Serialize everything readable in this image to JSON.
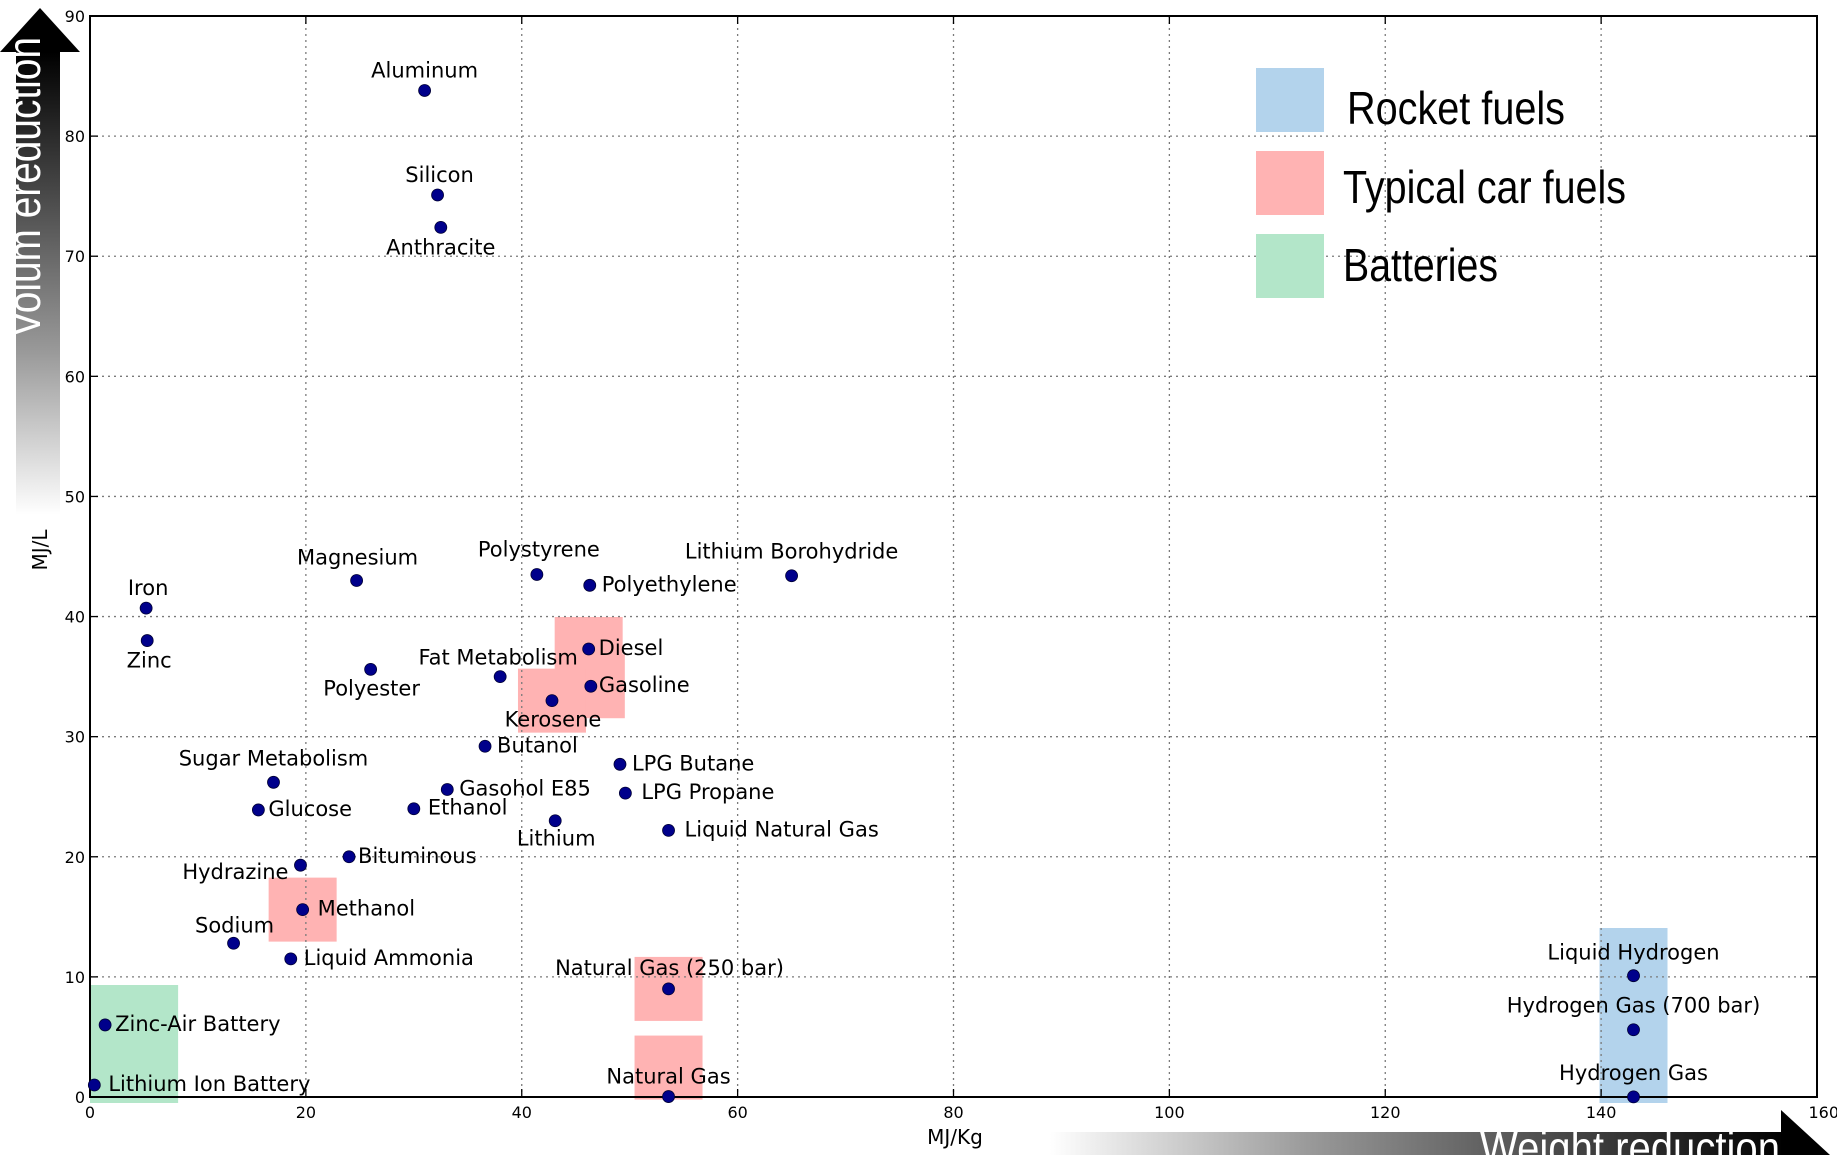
{
  "chart_data": {
    "type": "scatter",
    "xlabel": "MJ/Kg",
    "ylabel": "MJ/L",
    "xlim": [
      0,
      160
    ],
    "ylim": [
      0,
      90
    ],
    "xticks": [
      0,
      20,
      40,
      60,
      80,
      100,
      120,
      140,
      160
    ],
    "yticks": [
      0,
      10,
      20,
      30,
      40,
      50,
      60,
      70,
      80,
      90
    ],
    "grid": true,
    "marker_color": "#00008b",
    "points": [
      {
        "label": "Aluminum",
        "x": 31.0,
        "y": 83.8
      },
      {
        "label": "Silicon",
        "x": 32.2,
        "y": 75.1
      },
      {
        "label": "Anthracite",
        "x": 32.5,
        "y": 72.4
      },
      {
        "label": "Magnesium",
        "x": 24.7,
        "y": 43.0
      },
      {
        "label": "Polystyrene",
        "x": 41.4,
        "y": 43.5
      },
      {
        "label": "Polyethylene",
        "x": 46.3,
        "y": 42.6
      },
      {
        "label": "Lithium Borohydride",
        "x": 65.0,
        "y": 43.4
      },
      {
        "label": "Iron",
        "x": 5.2,
        "y": 40.7
      },
      {
        "label": "Zinc",
        "x": 5.3,
        "y": 38.0
      },
      {
        "label": "Polyester",
        "x": 26.0,
        "y": 35.6
      },
      {
        "label": "Fat Metabolism",
        "x": 38.0,
        "y": 35.0
      },
      {
        "label": "Diesel",
        "x": 46.2,
        "y": 37.3
      },
      {
        "label": "Gasoline",
        "x": 46.4,
        "y": 34.2
      },
      {
        "label": "Kerosene",
        "x": 42.8,
        "y": 33.0
      },
      {
        "label": "Butanol",
        "x": 36.6,
        "y": 29.2
      },
      {
        "label": "Sugar Metabolism",
        "x": 17.0,
        "y": 26.2
      },
      {
        "label": "LPG Butane",
        "x": 49.1,
        "y": 27.7
      },
      {
        "label": "LPG Propane",
        "x": 49.6,
        "y": 25.3
      },
      {
        "label": "Gasohol E85",
        "x": 33.1,
        "y": 25.6
      },
      {
        "label": "Glucose",
        "x": 15.6,
        "y": 23.9
      },
      {
        "label": "Ethanol",
        "x": 30.0,
        "y": 24.0
      },
      {
        "label": "Lithium",
        "x": 43.1,
        "y": 23.0
      },
      {
        "label": "Liquid Natural Gas",
        "x": 53.6,
        "y": 22.2
      },
      {
        "label": "Bituminous",
        "x": 24.0,
        "y": 20.0
      },
      {
        "label": "Hydrazine",
        "x": 19.5,
        "y": 19.3
      },
      {
        "label": "Methanol",
        "x": 19.7,
        "y": 15.6
      },
      {
        "label": "Sodium",
        "x": 13.3,
        "y": 12.8
      },
      {
        "label": "Liquid Ammonia",
        "x": 18.6,
        "y": 11.5
      },
      {
        "label": "Natural Gas (250 bar)",
        "x": 53.6,
        "y": 9.0
      },
      {
        "label": "Zinc-Air Battery",
        "x": 1.4,
        "y": 6.0
      },
      {
        "label": "Lithium Ion Battery",
        "x": 0.4,
        "y": 1.0
      },
      {
        "label": "Natural Gas",
        "x": 53.6,
        "y": 0.036
      },
      {
        "label": "Liquid Hydrogen",
        "x": 143.0,
        "y": 10.1
      },
      {
        "label": "Hydrogen Gas (700 bar)",
        "x": 143.0,
        "y": 5.6
      },
      {
        "label": "Hydrogen Gas",
        "x": 143.0,
        "y": 0.01
      }
    ],
    "highlights": [
      {
        "category": "Rocket fuels",
        "point": "Liquid Hydrogen"
      },
      {
        "category": "Typical car fuels",
        "point": "Diesel"
      },
      {
        "category": "Typical car fuels",
        "point": "Gasoline"
      },
      {
        "category": "Typical car fuels",
        "point": "Kerosene"
      },
      {
        "category": "Typical car fuels",
        "point": "Methanol"
      },
      {
        "category": "Typical car fuels",
        "point": "Natural Gas (250 bar)"
      },
      {
        "category": "Typical car fuels",
        "point": "Natural Gas"
      },
      {
        "category": "Batteries",
        "point": "Zinc-Air Battery"
      },
      {
        "category": "Batteries",
        "point": "Lithium Ion Battery"
      }
    ],
    "legend": {
      "placement": "top-right",
      "entries": [
        {
          "label": "Rocket fuels",
          "color": "#b3d3ec"
        },
        {
          "label": "Typical car fuels",
          "color": "#ffb3b3"
        },
        {
          "label": "Batteries",
          "color": "#b3e6c9"
        }
      ]
    },
    "arrows": {
      "vertical_label": "Volum ereduction",
      "horizontal_label": "Weight reduction"
    }
  }
}
